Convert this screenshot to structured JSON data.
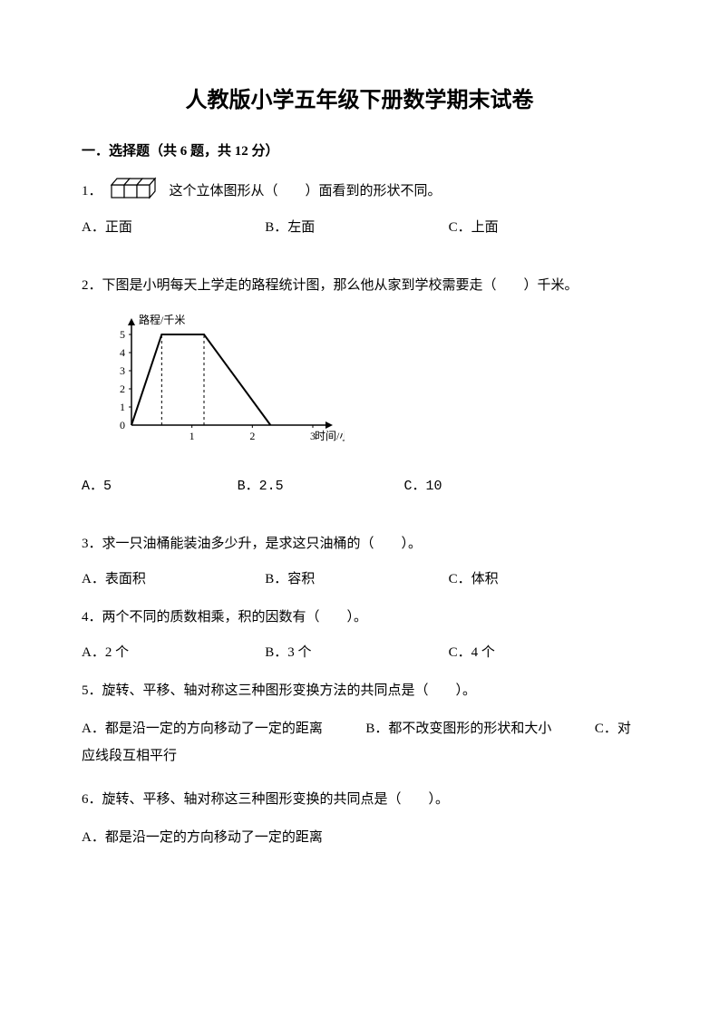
{
  "title": "人教版小学五年级下册数学期末试卷",
  "section1": {
    "header": "一．选择题（共 6 题，共 12 分）",
    "q1": {
      "num": "1．",
      "text_before": "",
      "text_after": "这个立体图形从（　　）面看到的形状不同。",
      "optA": "A．正面",
      "optB": "B．左面",
      "optC": "C．上面"
    },
    "q2": {
      "text": "2．下图是小明每天上学走的路程统计图，那么他从家到学校需要走（　　）千米。",
      "chart": {
        "ylabel": "路程/千米",
        "xlabel": "时间/小时",
        "yticks": [
          "0",
          "1",
          "2",
          "3",
          "4",
          "5"
        ],
        "xticks": [
          "1",
          "2",
          "3"
        ],
        "ymax": 5,
        "xmax": 3,
        "line_points": [
          [
            0,
            0
          ],
          [
            0.5,
            5
          ],
          [
            1.2,
            5
          ],
          [
            2.3,
            0
          ]
        ],
        "dash_x": [
          0.5,
          1.2
        ],
        "axis_color": "#000000",
        "line_color": "#000000",
        "line_width": 2,
        "font_size": 12
      },
      "optA": "A．5",
      "optB": "B．2.5",
      "optC": "C．10"
    },
    "q3": {
      "text": "3．求一只油桶能装油多少升，是求这只油桶的（　　）。",
      "optA": "A．表面积",
      "optB": "B．容积",
      "optC": "C．体积"
    },
    "q4": {
      "text": "4．两个不同的质数相乘，积的因数有（　　）。",
      "optA": "A．2 个",
      "optB": "B．3 个",
      "optC": "C．4 个"
    },
    "q5": {
      "text": "5．旋转、平移、轴对称这三种图形变换方法的共同点是（　　）。",
      "optA": "A．都是沿一定的方向移动了一定的距离",
      "optB": "B．都不改变图形的形状和大小",
      "optC": "C．对应线段互相平行"
    },
    "q6": {
      "text": "6．旋转、平移、轴对称这三种图形变换的共同点是（　　）。",
      "optA": "A．都是沿一定的方向移动了一定的距离"
    }
  }
}
